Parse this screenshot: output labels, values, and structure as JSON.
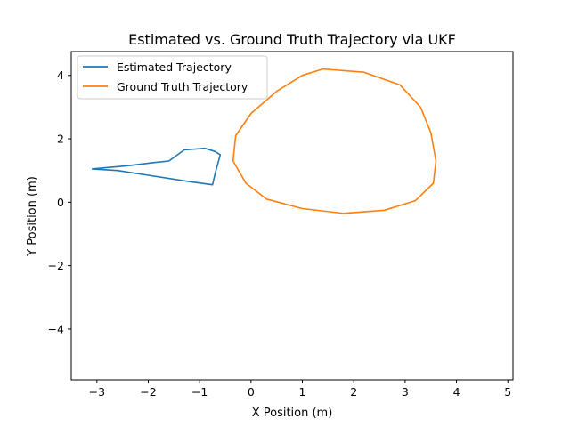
{
  "chart_data": {
    "type": "line",
    "title": "Estimated vs. Ground Truth Trajectory via UKF",
    "xlabel": "X Position (m)",
    "ylabel": "Y Position (m)",
    "xlim": [
      -3.5,
      5.1
    ],
    "ylim": [
      -5.6,
      4.75
    ],
    "xticks": [
      -3,
      -2,
      -1,
      0,
      1,
      2,
      3,
      4,
      5
    ],
    "yticks": [
      -4,
      -2,
      0,
      2,
      4
    ],
    "xtick_labels": [
      "−3",
      "−2",
      "−1",
      "0",
      "1",
      "2",
      "3",
      "4",
      "5"
    ],
    "ytick_labels": [
      "−4",
      "−2",
      "0",
      "2",
      "4"
    ],
    "grid": false,
    "legend_position": "top-left",
    "series": [
      {
        "name": "Estimated Trajectory",
        "color": "#1f77b4",
        "points": [
          [
            -3.1,
            1.05
          ],
          [
            -2.4,
            1.15
          ],
          [
            -1.9,
            1.25
          ],
          [
            -1.6,
            1.3
          ],
          [
            -1.3,
            1.65
          ],
          [
            -0.9,
            1.7
          ],
          [
            -0.7,
            1.6
          ],
          [
            -0.6,
            1.5
          ],
          [
            -0.7,
            0.9
          ],
          [
            -0.75,
            0.55
          ],
          [
            -1.2,
            0.65
          ],
          [
            -2.0,
            0.85
          ],
          [
            -2.6,
            1.0
          ],
          [
            -3.1,
            1.05
          ]
        ]
      },
      {
        "name": "Ground Truth Trajectory",
        "color": "#ff7f0e",
        "points": [
          [
            1.4,
            4.2
          ],
          [
            2.2,
            4.1
          ],
          [
            2.9,
            3.7
          ],
          [
            3.3,
            3.0
          ],
          [
            3.5,
            2.2
          ],
          [
            3.6,
            1.3
          ],
          [
            3.55,
            0.6
          ],
          [
            3.2,
            0.05
          ],
          [
            2.6,
            -0.25
          ],
          [
            1.8,
            -0.35
          ],
          [
            1.0,
            -0.2
          ],
          [
            0.3,
            0.1
          ],
          [
            -0.1,
            0.6
          ],
          [
            -0.35,
            1.3
          ],
          [
            -0.3,
            2.1
          ],
          [
            0.0,
            2.8
          ],
          [
            0.5,
            3.5
          ],
          [
            1.0,
            4.0
          ],
          [
            1.4,
            4.2
          ]
        ]
      }
    ]
  }
}
